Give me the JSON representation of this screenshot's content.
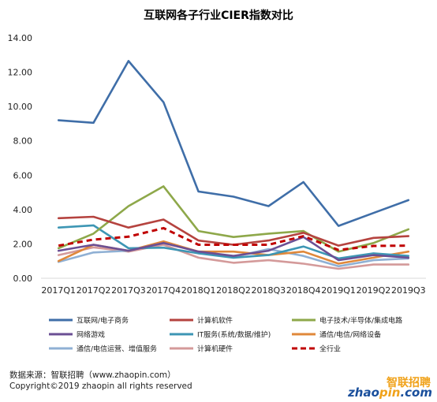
{
  "chart_data": {
    "type": "line",
    "title": "互联网各子行业CIER指数对比",
    "categories": [
      "2017Q1",
      "2017Q2",
      "2017Q3",
      "2017Q4",
      "2018Q1",
      "2018Q2",
      "2018Q3",
      "2018Q4",
      "2019Q1",
      "2019Q2",
      "2019Q3"
    ],
    "ylim": [
      0,
      14
    ],
    "yticks": [
      "0.00",
      "2.00",
      "4.00",
      "6.00",
      "8.00",
      "10.00",
      "12.00",
      "14.00"
    ],
    "grid": false,
    "legend_position": "bottom",
    "series": [
      {
        "name": "互联网/电子商务",
        "color": "#3f6ea8",
        "dashed": false,
        "values": [
          9.2,
          9.05,
          12.65,
          10.25,
          5.05,
          4.75,
          4.2,
          5.6,
          3.05,
          3.8,
          4.55
        ]
      },
      {
        "name": "计算机软件",
        "color": "#b5433f",
        "dashed": false,
        "values": [
          3.5,
          3.58,
          2.95,
          3.42,
          2.2,
          1.95,
          2.2,
          2.65,
          1.9,
          2.35,
          2.45
        ]
      },
      {
        "name": "电子技术/半导体/集成电路",
        "color": "#8ea84a",
        "dashed": false,
        "values": [
          1.75,
          2.6,
          4.2,
          5.35,
          2.75,
          2.4,
          2.6,
          2.75,
          1.55,
          2.05,
          2.85
        ]
      },
      {
        "name": "网络游戏",
        "color": "#6b4f94",
        "dashed": false,
        "values": [
          1.6,
          1.95,
          1.6,
          2.05,
          1.55,
          1.3,
          1.6,
          2.4,
          1.05,
          1.35,
          1.2
        ]
      },
      {
        "name": "IT服务(系统/数据/维护)",
        "color": "#3d96b4",
        "dashed": false,
        "values": [
          2.95,
          3.08,
          1.75,
          1.78,
          1.45,
          1.2,
          1.35,
          1.85,
          1.15,
          1.45,
          1.3
        ]
      },
      {
        "name": "通信/电信/网络设备",
        "color": "#e0883a",
        "dashed": false,
        "values": [
          1.0,
          1.95,
          1.6,
          2.15,
          1.55,
          1.55,
          1.35,
          1.55,
          0.85,
          1.2,
          1.55
        ]
      },
      {
        "name": "通信/电信运营、增值服务",
        "color": "#8fb0d4",
        "dashed": false,
        "values": [
          0.95,
          1.5,
          1.6,
          2.1,
          1.55,
          1.25,
          1.7,
          1.3,
          0.7,
          1.05,
          1.15
        ]
      },
      {
        "name": "计算机硬件",
        "color": "#d49a9a",
        "dashed": false,
        "values": [
          1.35,
          1.8,
          1.55,
          1.95,
          1.2,
          0.9,
          1.05,
          0.85,
          0.55,
          0.8,
          0.8
        ]
      },
      {
        "name": "全行业",
        "color": "#c00000",
        "dashed": true,
        "values": [
          1.9,
          2.25,
          2.42,
          2.92,
          1.95,
          1.95,
          1.95,
          2.45,
          1.65,
          1.88,
          1.9
        ]
      }
    ]
  },
  "footer": {
    "source": "数据来源：智联招聘（www.zhaopin.com）",
    "copyright": "Copyright©2019 zhaopin all rights reserved"
  },
  "logo": {
    "chinese": "智联招聘",
    "english_main": "zhao",
    "english_accent": "pin",
    "english_tail": ".com"
  }
}
